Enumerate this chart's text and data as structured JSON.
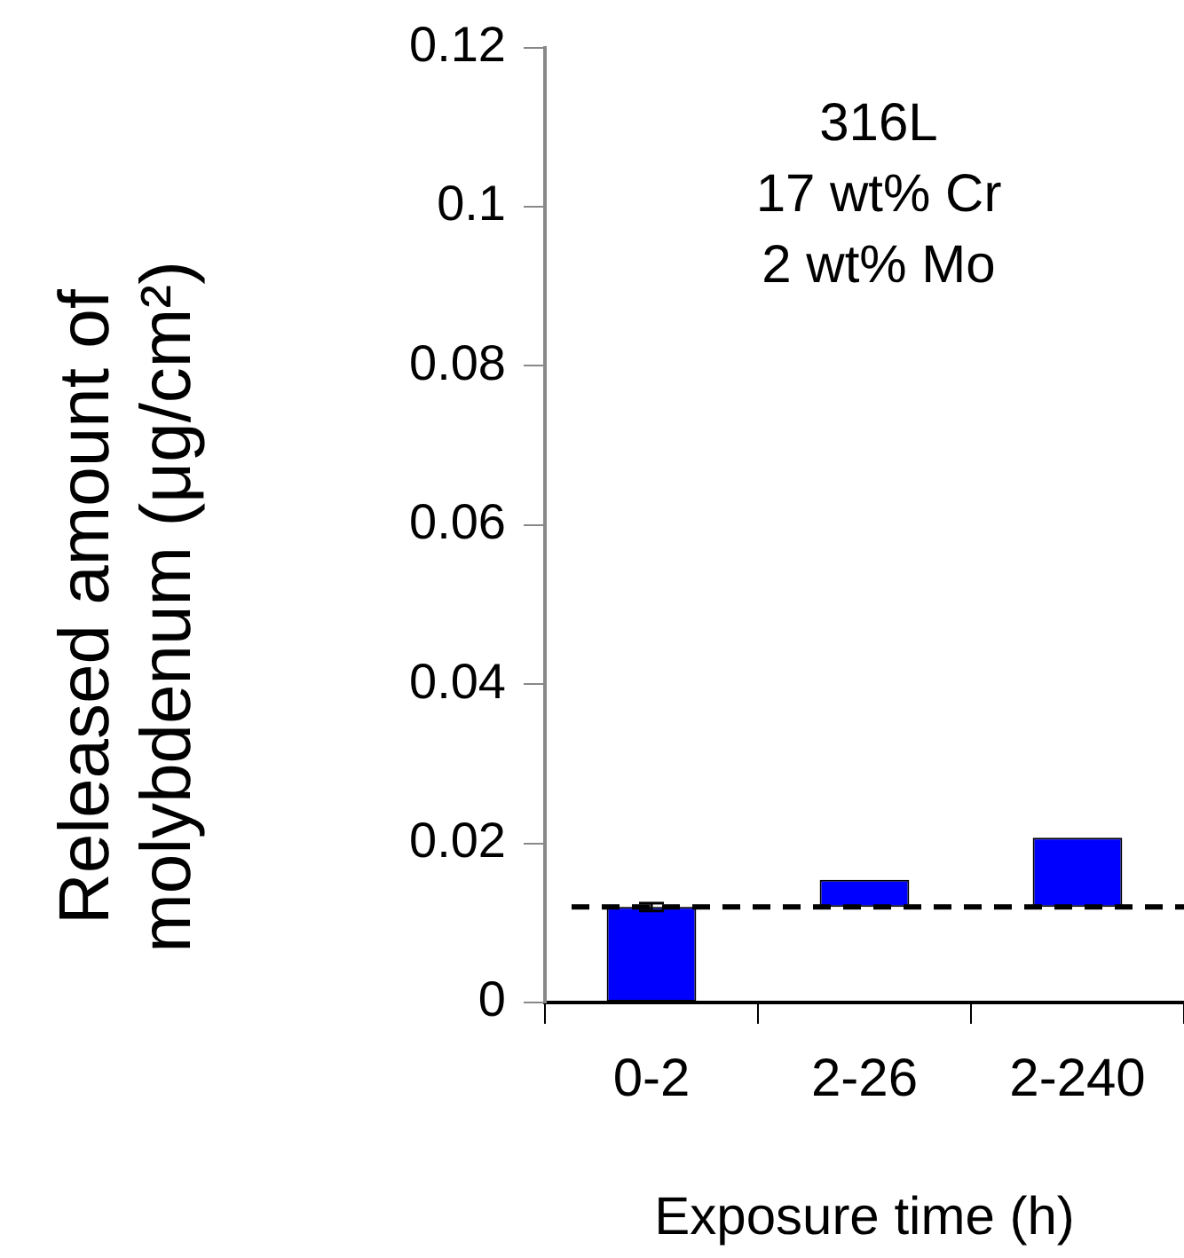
{
  "chart_data": {
    "type": "bar",
    "annotations": [
      "316L",
      "17 wt% Cr",
      "2 wt% Mo"
    ],
    "xlabel": "Exposure time (h)",
    "ylabel": "Released amount of molybdenum (μg/cm²)",
    "categories": [
      "0-2",
      "2-26",
      "2-240"
    ],
    "values": [
      0.012,
      0.0034,
      0.0087
    ],
    "base": [
      0,
      0.012,
      0.012
    ],
    "errors": [
      0.0005,
      null,
      null
    ],
    "color": "#0000ff",
    "ylim": [
      0,
      0.12
    ],
    "yticks": [
      0,
      0.02,
      0.04,
      0.06,
      0.08,
      0.1,
      0.12
    ],
    "ref_lines": [
      {
        "axis": "y",
        "value": 0.012,
        "line_style": "dashed",
        "color": "#000000"
      }
    ],
    "grid": false,
    "legend": false
  }
}
